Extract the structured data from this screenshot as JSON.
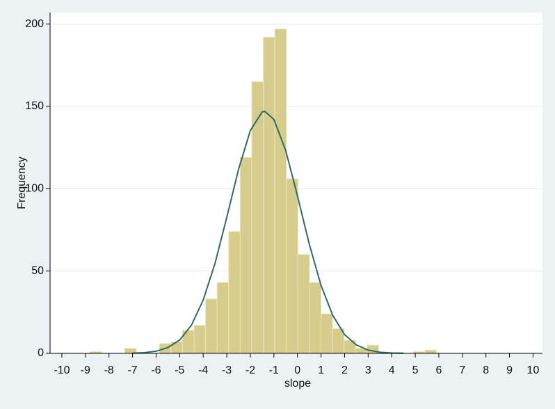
{
  "chart_data": {
    "type": "histogram",
    "x_label": "slope",
    "y_label": "Frequency",
    "bins": [
      -8.8,
      -8.31,
      -7.82,
      -7.33,
      -6.84,
      -6.35,
      -5.86,
      -5.37,
      -4.88,
      -4.39,
      -3.9,
      -3.41,
      -2.92,
      -2.43,
      -1.94,
      -1.45,
      -0.96,
      -0.47,
      0.02,
      0.51,
      1.0,
      1.49,
      1.98,
      2.47,
      2.96,
      3.45,
      3.94,
      4.43,
      4.92,
      5.41,
      5.9
    ],
    "values": [
      1,
      0,
      0,
      3,
      0,
      0,
      6,
      7,
      14,
      17,
      33,
      43,
      74,
      119,
      165,
      192,
      197,
      106,
      60,
      43,
      24,
      15,
      8,
      3,
      5,
      0,
      0,
      0,
      1,
      2
    ],
    "color": "#d6cd8d",
    "curve": {
      "color": "#2c6b67",
      "x": [
        -7,
        -6.5,
        -6,
        -5.5,
        -5,
        -4.5,
        -4,
        -3.5,
        -3,
        -2.5,
        -2,
        -1.5,
        -1.39,
        -1,
        -0.5,
        0,
        0.5,
        1,
        1.5,
        2,
        2.5,
        3,
        3.5,
        4,
        4.5
      ],
      "y": [
        0.1,
        0.4,
        1.3,
        3.5,
        8.1,
        17.1,
        32.4,
        54.6,
        82.6,
        111.8,
        135.3,
        146.6,
        147,
        142.1,
        123.3,
        95.7,
        66.4,
        41.3,
        23.0,
        11.4,
        5.1,
        2.0,
        0.7,
        0.2,
        0.1
      ]
    },
    "xlim": [
      -10.5,
      10.4
    ],
    "ylim": [
      0,
      207
    ],
    "xticks": [
      -10,
      -9,
      -8,
      -7,
      -6,
      -5,
      -4,
      -3,
      -2,
      -1,
      0,
      1,
      2,
      3,
      4,
      5,
      6,
      7,
      8,
      9,
      10
    ],
    "yticks": [
      0,
      50,
      100,
      150,
      200
    ],
    "grid": true
  }
}
